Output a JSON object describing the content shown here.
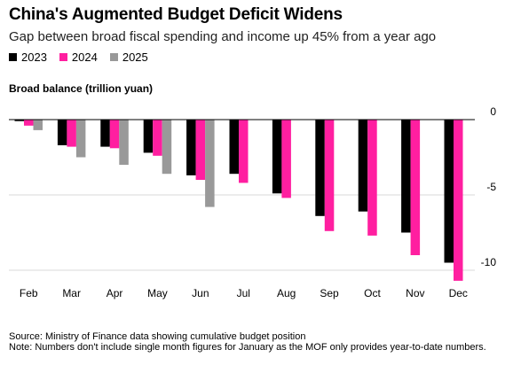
{
  "chart_data": {
    "type": "bar",
    "title": "China's Augmented Budget Deficit Widens",
    "subtitle": "Gap between broad fiscal spending and income up 45% from a year ago",
    "ylabel": "Broad balance (trillion yuan)",
    "xlabel": "",
    "categories": [
      "Feb",
      "Mar",
      "Apr",
      "May",
      "Jun",
      "Jul",
      "Aug",
      "Sep",
      "Oct",
      "Nov",
      "Dec"
    ],
    "series": [
      {
        "name": "2023",
        "color": "#000000",
        "values": [
          -0.1,
          -1.7,
          -1.8,
          -2.2,
          -3.7,
          -3.6,
          -4.9,
          -6.4,
          -6.1,
          -7.5,
          -9.5
        ]
      },
      {
        "name": "2024",
        "color": "#ff1fa0",
        "values": [
          -0.4,
          -1.8,
          -1.9,
          -2.4,
          -4.0,
          -4.2,
          -5.2,
          -7.4,
          -7.7,
          -9.0,
          -10.7
        ]
      },
      {
        "name": "2025",
        "color": "#999999",
        "values": [
          -0.7,
          -2.5,
          -3.0,
          -3.6,
          -5.8,
          null,
          null,
          null,
          null,
          null,
          null
        ]
      }
    ],
    "yticks": [
      0,
      -5,
      -10
    ],
    "ytick_labels": [
      "0",
      "-5",
      "-10"
    ],
    "ylim": [
      -10.7,
      0.6
    ],
    "grid": true,
    "legend_position": "top-left"
  },
  "footer": {
    "source": "Source: Ministry of Finance data showing cumulative budget position",
    "note": "Note: Numbers don't include single month figures for January as the MOF only provides year-to-date numbers."
  }
}
